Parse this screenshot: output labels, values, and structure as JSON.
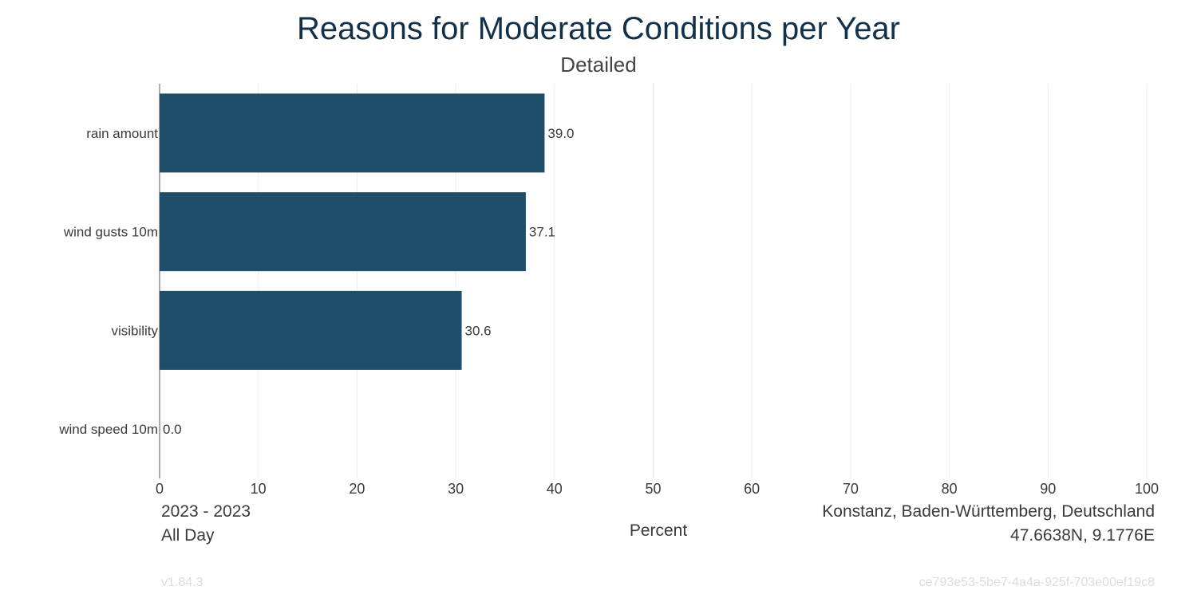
{
  "chart_data": {
    "type": "bar",
    "orientation": "horizontal",
    "title": "Reasons for Moderate Conditions per Year",
    "subtitle": "Detailed",
    "categories": [
      "rain amount",
      "wind gusts 10m",
      "visibility",
      "wind speed 10m"
    ],
    "values": [
      39.0,
      37.1,
      30.6,
      0.0
    ],
    "value_labels": [
      "39.0",
      "37.1",
      "30.6",
      "0.0"
    ],
    "xlabel": "Percent",
    "xlim": [
      0,
      100
    ],
    "xticks": [
      0,
      10,
      20,
      30,
      40,
      50,
      60,
      70,
      80,
      90,
      100
    ],
    "grid": "vertical",
    "bar_color": "#1f4e6b"
  },
  "footer": {
    "period": "2023 - 2023",
    "time_of_day": "All Day",
    "location": "Konstanz, Baden-Württemberg, Deutschland",
    "coordinates": "47.6638N, 9.1776E",
    "version": "v1.84.3",
    "id": "ce793e53-5be7-4a4a-925f-703e00ef19c8"
  },
  "colors": {
    "title": "#12304a",
    "grid": "#ececec",
    "text": "#3a3a3a"
  }
}
